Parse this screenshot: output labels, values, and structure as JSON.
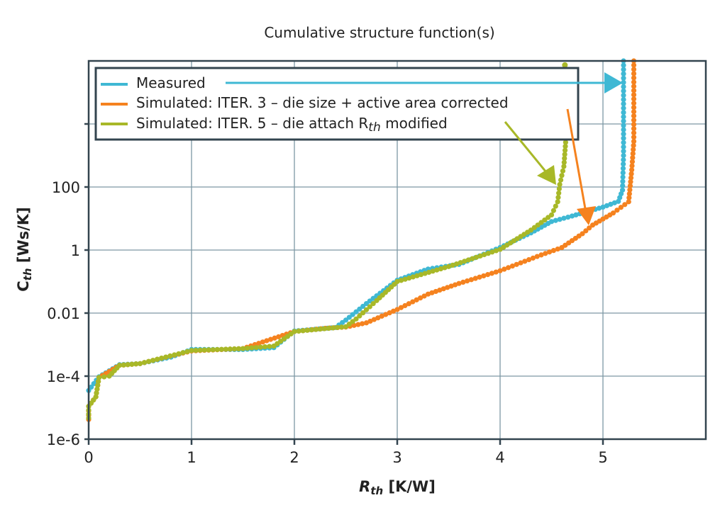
{
  "chart_data": {
    "type": "scatter",
    "title": "Cumulative structure function(s)",
    "xlabel": {
      "main": "R",
      "sub": "th",
      "unit": " [K/W]"
    },
    "ylabel": {
      "main": "C",
      "sub": "th",
      "unit": " [Ws/K]"
    },
    "xlim": [
      0,
      6
    ],
    "ylim": [
      1e-06,
      1000000.0
    ],
    "yscale": "log",
    "grid": true,
    "legend_position": "top-left",
    "x_ticks": [
      0,
      1,
      2,
      3,
      4,
      5
    ],
    "x_tick_labels": [
      "0",
      "1",
      "2",
      "3",
      "4",
      "5"
    ],
    "y_ticks": [
      1e-06,
      0.0001,
      0.01,
      1,
      100,
      10000
    ],
    "y_tick_labels": [
      "1e-6",
      "1e-4",
      "0.01",
      "1",
      "100",
      ""
    ],
    "series": [
      {
        "name": "Measured",
        "color": "#3fb8d4",
        "points": [
          [
            0,
            3.5e-05
          ],
          [
            0.1,
            9.5e-05
          ],
          [
            0.3,
            0.00023
          ],
          [
            0.5,
            0.00025
          ],
          [
            0.8,
            0.0004
          ],
          [
            1.0,
            0.0007
          ],
          [
            1.5,
            0.0007
          ],
          [
            1.8,
            0.0008
          ],
          [
            2.0,
            0.0027
          ],
          [
            2.4,
            0.0035
          ],
          [
            2.5,
            0.006
          ],
          [
            2.7,
            0.02
          ],
          [
            3.0,
            0.11
          ],
          [
            3.3,
            0.25
          ],
          [
            3.6,
            0.35
          ],
          [
            4.0,
            1.2
          ],
          [
            4.3,
            3.5
          ],
          [
            4.5,
            8
          ],
          [
            4.7,
            12
          ],
          [
            5.0,
            23
          ],
          [
            5.15,
            35
          ],
          [
            5.19,
            80
          ],
          [
            5.2,
            1000
          ],
          [
            5.2,
            1000000.0
          ]
        ]
      },
      {
        "name": "Simulated: ITER. 3 – die size + active area corrected",
        "color": "#f5821f",
        "points": [
          [
            0,
            4.2e-06
          ],
          [
            0,
            1.1e-05
          ],
          [
            0.07,
            2.2e-05
          ],
          [
            0.1,
            9e-05
          ],
          [
            0.3,
            0.00022
          ],
          [
            0.5,
            0.00025
          ],
          [
            1.0,
            0.00063
          ],
          [
            1.5,
            0.00075
          ],
          [
            2.0,
            0.0026
          ],
          [
            2.3,
            0.0033
          ],
          [
            2.5,
            0.0036
          ],
          [
            2.7,
            0.0049
          ],
          [
            3.0,
            0.013
          ],
          [
            3.3,
            0.04
          ],
          [
            3.6,
            0.087
          ],
          [
            4.0,
            0.22
          ],
          [
            4.4,
            0.7
          ],
          [
            4.6,
            1.2
          ],
          [
            4.8,
            3.3
          ],
          [
            4.9,
            6.2
          ],
          [
            5.1,
            15
          ],
          [
            5.25,
            34
          ],
          [
            5.28,
            350
          ],
          [
            5.3,
            2800
          ],
          [
            5.3,
            1000000.0
          ]
        ]
      },
      {
        "name": "Simulated: ITER. 5 – die attach R",
        "name_sub": "th",
        "name_suffix": " modified",
        "color": "#a8b828",
        "points": [
          [
            0,
            4.7e-06
          ],
          [
            0,
            1.1e-05
          ],
          [
            0.07,
            2.2e-05
          ],
          [
            0.1,
            9e-05
          ],
          [
            0.2,
            0.0001
          ],
          [
            0.3,
            0.00022
          ],
          [
            0.5,
            0.00025
          ],
          [
            1.0,
            0.00065
          ],
          [
            1.5,
            0.00075
          ],
          [
            1.8,
            0.0009
          ],
          [
            2.0,
            0.0026
          ],
          [
            2.5,
            0.0037
          ],
          [
            2.6,
            0.0065
          ],
          [
            2.8,
            0.025
          ],
          [
            3.0,
            0.1
          ],
          [
            3.5,
            0.3
          ],
          [
            4.0,
            1.05
          ],
          [
            4.3,
            4.3
          ],
          [
            4.5,
            13
          ],
          [
            4.56,
            34
          ],
          [
            4.58,
            120
          ],
          [
            4.62,
            450
          ],
          [
            4.64,
            3500
          ]
        ],
        "isolated_points": [
          [
            4.63,
            740000.0
          ]
        ]
      }
    ]
  }
}
